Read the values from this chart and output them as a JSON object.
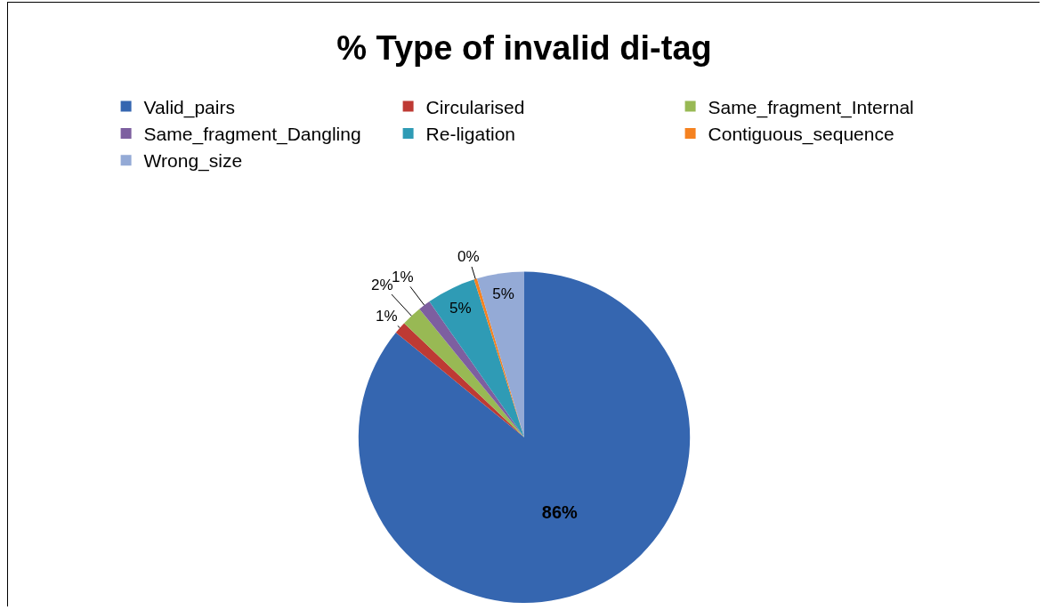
{
  "chart_data": {
    "type": "pie",
    "title": "% Type of invalid di-tag",
    "categories": [
      "Valid_pairs",
      "Circularised",
      "Same_fragment_Internal",
      "Same_fragment_Dangling",
      "Re-ligation",
      "Contiguous_sequence",
      "Wrong_size"
    ],
    "values": [
      85.9,
      1.2,
      2.0,
      1.2,
      4.8,
      0.3,
      4.6
    ],
    "value_labels": [
      "86%",
      "1%",
      "2%",
      "1%",
      "5%",
      "0%",
      "5%"
    ],
    "colors": [
      "#3566b0",
      "#be3a34",
      "#98b954",
      "#7d5fa0",
      "#2f9bb5",
      "#f58220",
      "#94aad6"
    ],
    "legend": "top"
  }
}
